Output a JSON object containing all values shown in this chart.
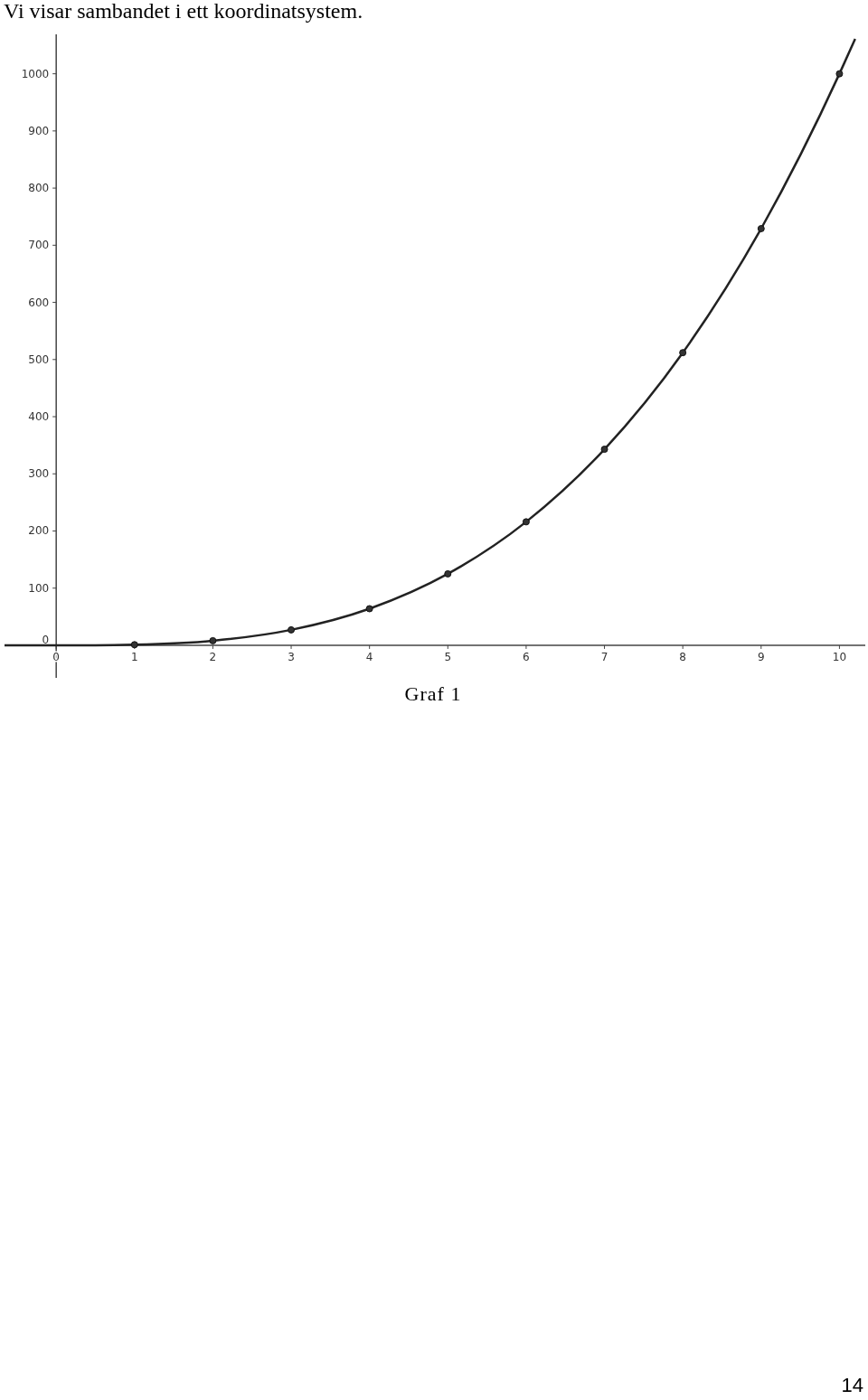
{
  "chart_data": {
    "type": "scatter",
    "title": "Vi visar sambandet i ett koordinatsystem.",
    "xlim": [
      -0.66,
      10.33
    ],
    "ylim": [
      -57,
      1069
    ],
    "xticks": [
      0,
      1,
      2,
      3,
      4,
      5,
      6,
      7,
      8,
      9,
      10
    ],
    "yticks": [
      0,
      100,
      200,
      300,
      400,
      500,
      600,
      700,
      800,
      900,
      1000
    ],
    "marker": "circle",
    "series": [
      {
        "type": "line",
        "marker": "none",
        "color": "#222222",
        "x": [
          -0.66,
          0,
          0.5,
          1,
          2,
          3,
          4,
          5,
          6,
          7,
          8,
          9,
          10,
          10.2
        ],
        "values": [
          0,
          0,
          0,
          1,
          8,
          27,
          64,
          125,
          216,
          343,
          512,
          729,
          1000,
          1061
        ]
      },
      {
        "color": "#333333",
        "x": [
          1,
          2,
          3,
          4,
          5,
          6,
          7,
          8,
          9,
          10
        ],
        "values": [
          1,
          8,
          27,
          64,
          125,
          216,
          343,
          512,
          729,
          1000
        ]
      }
    ],
    "annotations": [
      "Graf 1",
      "14"
    ]
  }
}
